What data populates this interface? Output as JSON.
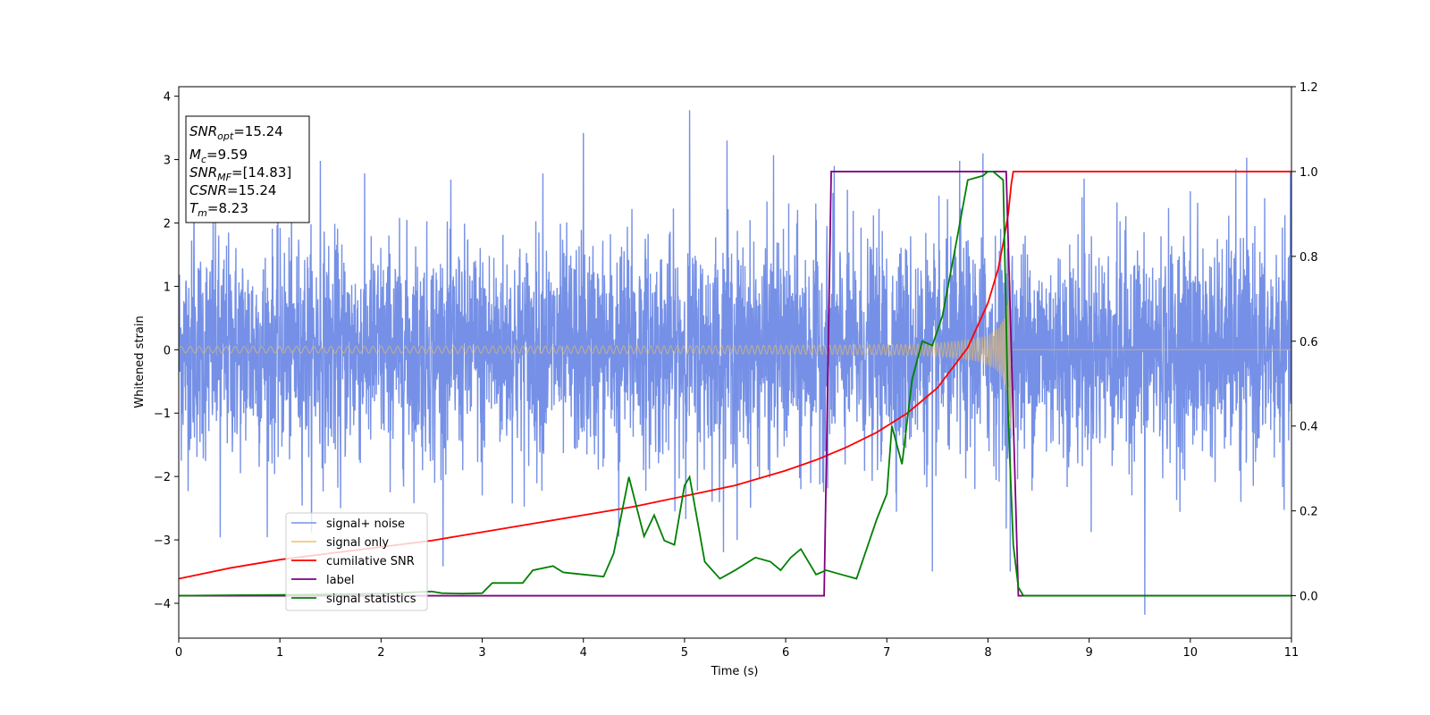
{
  "chart_data": {
    "type": "line",
    "xlabel": "Time (s)",
    "ylabel": "Whitened strain",
    "xlim": [
      0,
      11
    ],
    "ylim": [
      -4.55,
      4.15
    ],
    "y2lim": [
      -0.1,
      1.2
    ],
    "xticks": [
      "0",
      "1",
      "2",
      "3",
      "4",
      "5",
      "6",
      "7",
      "8",
      "9",
      "10",
      "11"
    ],
    "yticks": [
      "−4",
      "−3",
      "−2",
      "−1",
      "0",
      "1",
      "2",
      "3",
      "4"
    ],
    "y2ticks": [
      "0.0",
      "0.2",
      "0.4",
      "0.6",
      "0.8",
      "1.0",
      "1.2"
    ],
    "grid": false,
    "legend_position": "lower-left",
    "info_box": {
      "snr_opt_label": "SNR",
      "snr_opt_sub": "opt",
      "snr_opt_value": "=15.24",
      "mc_label": "M",
      "mc_sub": "c",
      "mc_value": "=9.59",
      "snr_mf_label": "SNR",
      "snr_mf_sub": "MF",
      "snr_mf_value": "=[14.83]",
      "csnr_label": "CSNR",
      "csnr_value": "=15.24",
      "tm_label": "T",
      "tm_sub": "m",
      "tm_value": "=8.23"
    },
    "series": [
      {
        "name": "signal+ noise",
        "axis": "left",
        "color": "#7590e6",
        "kind": "noise",
        "noise_sigma": 0.85,
        "spikes": [
          [
            0.15,
            2.55
          ],
          [
            0.34,
            2.1
          ],
          [
            0.41,
            -2.96
          ],
          [
            1.4,
            2.98
          ],
          [
            1.6,
            -2.5
          ],
          [
            2.53,
            -2.1
          ],
          [
            3.0,
            -2.3
          ],
          [
            3.6,
            2.78
          ],
          [
            4.0,
            3.42
          ],
          [
            4.35,
            -2.95
          ],
          [
            4.48,
            2.22
          ],
          [
            5.05,
            3.78
          ],
          [
            5.42,
            3.3
          ],
          [
            5.52,
            -3.0
          ],
          [
            5.88,
            3.07
          ],
          [
            6.15,
            -2.2
          ],
          [
            6.48,
            2.9
          ],
          [
            7.45,
            -3.5
          ],
          [
            7.72,
            2.98
          ],
          [
            7.95,
            3.1
          ],
          [
            8.22,
            -3.5
          ],
          [
            8.95,
            2.7
          ],
          [
            9.55,
            -4.18
          ],
          [
            10.0,
            2.5
          ],
          [
            10.45,
            2.85
          ],
          [
            10.5,
            -2.4
          ]
        ]
      },
      {
        "name": "signal only",
        "axis": "left",
        "color": "#f0c060",
        "kind": "chirp",
        "t_merge": 8.23,
        "amp_start": 0.05,
        "amp_peak": 1.25
      },
      {
        "name": "cumilative SNR",
        "axis": "right",
        "color": "#ff0000",
        "x": [
          0,
          0.5,
          1,
          1.5,
          2,
          2.5,
          3,
          3.5,
          4,
          4.5,
          5,
          5.5,
          6,
          6.3,
          6.6,
          6.9,
          7.2,
          7.5,
          7.8,
          8.0,
          8.1,
          8.15,
          8.2,
          8.23,
          8.25,
          11
        ],
        "y": [
          0.04,
          0.065,
          0.085,
          0.1,
          0.115,
          0.13,
          0.15,
          0.17,
          0.19,
          0.21,
          0.235,
          0.26,
          0.295,
          0.32,
          0.35,
          0.385,
          0.43,
          0.49,
          0.585,
          0.69,
          0.77,
          0.83,
          0.9,
          0.97,
          1.0,
          1.0
        ]
      },
      {
        "name": "label",
        "axis": "right",
        "color": "#800080",
        "x": [
          0,
          6.38,
          6.45,
          8.18,
          8.3,
          11
        ],
        "y": [
          0,
          0,
          1,
          1,
          0,
          0
        ]
      },
      {
        "name": "signal statistics",
        "axis": "right",
        "color": "#008000",
        "x": [
          0,
          1,
          2,
          2.3,
          2.5,
          2.6,
          2.8,
          3.0,
          3.1,
          3.4,
          3.5,
          3.7,
          3.8,
          4.0,
          4.2,
          4.3,
          4.45,
          4.6,
          4.7,
          4.8,
          4.9,
          5.0,
          5.05,
          5.2,
          5.35,
          5.5,
          5.7,
          5.85,
          5.95,
          6.05,
          6.15,
          6.3,
          6.4,
          6.55,
          6.7,
          6.9,
          7.0,
          7.05,
          7.15,
          7.25,
          7.35,
          7.45,
          7.55,
          7.7,
          7.8,
          7.95,
          8.0,
          8.05,
          8.15,
          8.2,
          8.25,
          8.3,
          8.35,
          11
        ],
        "y": [
          0,
          0.002,
          0.005,
          0.008,
          0.01,
          0.006,
          0.005,
          0.006,
          0.03,
          0.03,
          0.06,
          0.07,
          0.055,
          0.05,
          0.045,
          0.1,
          0.28,
          0.14,
          0.19,
          0.13,
          0.12,
          0.26,
          0.28,
          0.08,
          0.04,
          0.06,
          0.09,
          0.08,
          0.06,
          0.09,
          0.11,
          0.05,
          0.06,
          0.05,
          0.04,
          0.18,
          0.24,
          0.4,
          0.31,
          0.51,
          0.6,
          0.59,
          0.66,
          0.85,
          0.98,
          0.99,
          1.0,
          1.0,
          0.98,
          0.42,
          0.12,
          0.02,
          0.0,
          0.0
        ]
      }
    ]
  }
}
